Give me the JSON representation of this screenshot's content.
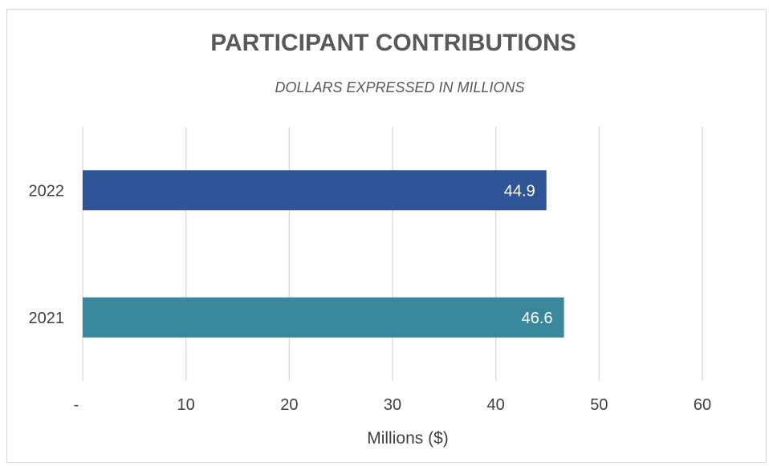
{
  "chart_data": {
    "type": "bar",
    "orientation": "horizontal",
    "title": "PARTICIPANT CONTRIBUTIONS",
    "subtitle": "DOLLARS EXPRESSED IN MILLIONS",
    "xlabel": "Millions ($)",
    "ylabel": "",
    "categories": [
      "2022",
      "2021"
    ],
    "values": [
      44.9,
      46.6
    ],
    "data_labels": [
      "44.9",
      "46.6"
    ],
    "bar_colors": [
      "#2f5597",
      "#38879a"
    ],
    "xlim": [
      0,
      60
    ],
    "x_ticks": [
      0,
      10,
      20,
      30,
      40,
      50,
      60
    ],
    "x_tick_labels": [
      "-",
      "10",
      "20",
      "30",
      "40",
      "50",
      "60"
    ],
    "grid": "vertical",
    "legend": "none"
  },
  "colors": {
    "gridline": "#d9d9d9",
    "text": "#404040",
    "title": "#595959",
    "label": "#ffffff"
  }
}
